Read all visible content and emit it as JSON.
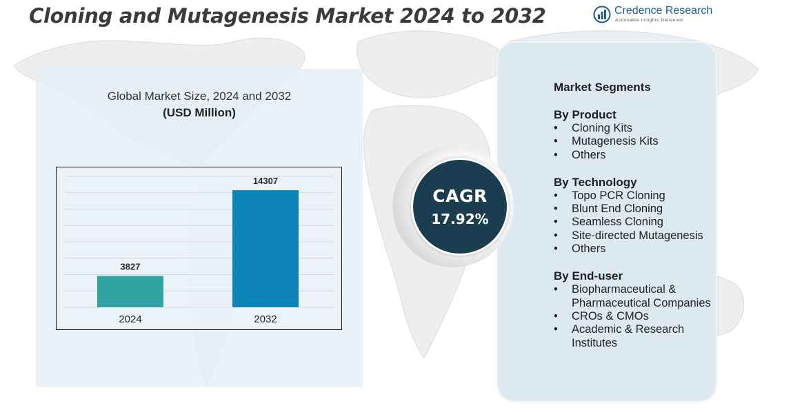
{
  "title": "Cloning and Mutagenesis Market 2024 to 2032",
  "logo": {
    "name": "Credence Research",
    "tagline": "Actionable Insights Delivered",
    "icon": "bar-chart-circle-icon",
    "color": "#1d5d8f"
  },
  "chart_heading": "Global Market Size, 2024 and 2032",
  "chart_unit": "(USD Million)",
  "chart_data": {
    "type": "bar",
    "categories": [
      "2024",
      "2032"
    ],
    "values": [
      3827,
      14307
    ],
    "data_labels": [
      "3827",
      "14307"
    ],
    "colors": [
      "#31a3a3",
      "#0d85b8"
    ],
    "ylim": [
      0,
      16000
    ],
    "grid": true,
    "xlabel": "",
    "ylabel": ""
  },
  "cagr": {
    "label": "CAGR",
    "value": "17.92%"
  },
  "segments": {
    "title": "Market Segments",
    "groups": [
      {
        "title": "By Product",
        "items": [
          "Cloning Kits",
          "Mutagenesis Kits",
          "Others"
        ]
      },
      {
        "title": "By Technology",
        "items": [
          "Topo PCR Cloning",
          "Blunt End Cloning",
          "Seamless Cloning",
          "Site-directed Mutagenesis",
          "Others"
        ]
      },
      {
        "title": "By End-user",
        "items": [
          "Biopharmaceutical & Pharmaceutical Companies",
          "CROs & CMOs",
          "Academic & Research Institutes"
        ]
      }
    ]
  }
}
